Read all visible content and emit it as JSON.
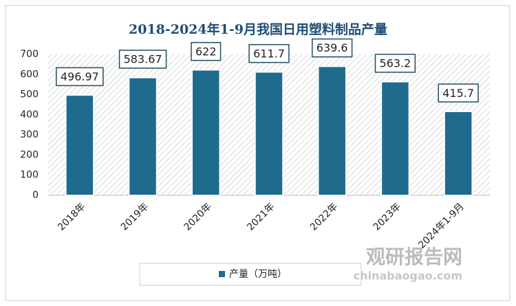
{
  "chart_data": {
    "type": "bar",
    "title": "2018-2024年1-9月我国日用塑料制品产量",
    "categories": [
      "2018年",
      "2019年",
      "2020年",
      "2021年",
      "2022年",
      "2023年",
      "2024年1-9月"
    ],
    "series": [
      {
        "name": "产量（万吨）",
        "color": "#1f6b8e",
        "values": [
          496.97,
          583.67,
          622,
          611.7,
          639.6,
          563.2,
          415.7
        ]
      }
    ],
    "ylim": [
      0,
      700
    ],
    "yticks": [
      0,
      100,
      200,
      300,
      400,
      500,
      600,
      700
    ],
    "grid": false,
    "legend": "bottom",
    "data_labels": true,
    "watermark": [
      "观研报告网",
      "chinabaogao.com"
    ]
  }
}
